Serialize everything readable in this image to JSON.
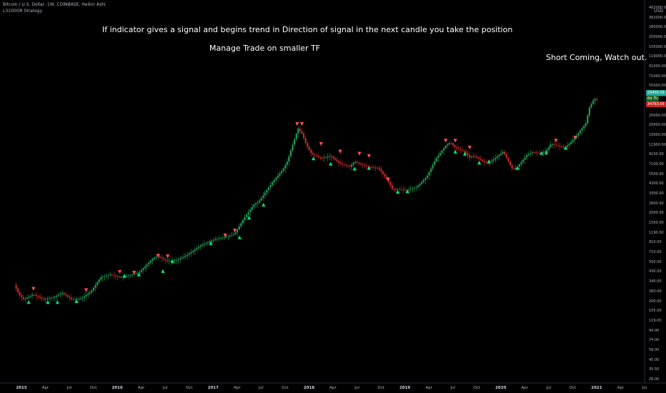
{
  "header": {
    "symbol_line": "Bitcoin / U.S. Dollar, 1W, COINBASE, Heikin Ashi",
    "indicator_line": "L3100OR Strategy"
  },
  "annotations": {
    "line1": "If indicator gives a signal and begins trend in Direction of signal in the next candle you take the position",
    "line2": "Manage Trade on smaller TF",
    "line3": "Short Coming, Watch out."
  },
  "price_scale": {
    "currency": "USD",
    "tags": [
      {
        "value": "29456.09",
        "color": "#26a69a"
      },
      {
        "value": "6d 7h",
        "color": "#1b5e20"
      },
      {
        "value": "34763.54",
        "color": "#c62828"
      }
    ]
  },
  "colors": {
    "up": "#26a65b",
    "down": "#d32f2f",
    "buy_signal": "#00e676",
    "sell_signal": "#ff5252"
  },
  "chart_data": {
    "type": "candlestick",
    "scale": "log",
    "ylim": [
      28,
      402000
    ],
    "y_ticks": [
      "402000.00",
      "362000.00",
      "280000.00",
      "200000.00",
      "155000.00",
      "119000.00",
      "91000.00",
      "71000.00",
      "55000.00",
      "42000.00",
      "32000.00",
      "25000.00",
      "20000.00",
      "15000.00",
      "11900.00",
      "9100.00",
      "7100.00",
      "5500.00",
      "4300.00",
      "3300.00",
      "2600.00",
      "2000.00",
      "1550.00",
      "1190.00",
      "910.00",
      "710.00",
      "550.00",
      "430.00",
      "340.00",
      "260.00",
      "200.00",
      "155.00",
      "119.00",
      "94.00",
      "74.00",
      "58.00",
      "45.00",
      "35.50",
      "28.00"
    ],
    "x_ticks": [
      {
        "label": "2015",
        "year": true
      },
      {
        "label": "Apr",
        "year": false
      },
      {
        "label": "Jul",
        "year": false
      },
      {
        "label": "Oct",
        "year": false
      },
      {
        "label": "2016",
        "year": true
      },
      {
        "label": "Apr",
        "year": false
      },
      {
        "label": "Jul",
        "year": false
      },
      {
        "label": "Oct",
        "year": false
      },
      {
        "label": "2017",
        "year": true
      },
      {
        "label": "Apr",
        "year": false
      },
      {
        "label": "Jul",
        "year": false
      },
      {
        "label": "Oct",
        "year": false
      },
      {
        "label": "2018",
        "year": true
      },
      {
        "label": "Apr",
        "year": false
      },
      {
        "label": "Jul",
        "year": false
      },
      {
        "label": "Oct",
        "year": false
      },
      {
        "label": "2019",
        "year": true
      },
      {
        "label": "Apr",
        "year": false
      },
      {
        "label": "Jul",
        "year": false
      },
      {
        "label": "Oct",
        "year": false
      },
      {
        "label": "2020",
        "year": true
      },
      {
        "label": "Apr",
        "year": false
      },
      {
        "label": "Jul",
        "year": false
      },
      {
        "label": "Oct",
        "year": false
      },
      {
        "label": "2021",
        "year": true
      },
      {
        "label": "Apr",
        "year": false
      },
      {
        "label": "Jul",
        "year": false
      }
    ],
    "series": [
      {
        "kind": "price_path",
        "points": [
          [
            2015.0,
            330
          ],
          [
            2015.05,
            260
          ],
          [
            2015.1,
            230
          ],
          [
            2015.2,
            260
          ],
          [
            2015.3,
            230
          ],
          [
            2015.4,
            240
          ],
          [
            2015.5,
            270
          ],
          [
            2015.6,
            230
          ],
          [
            2015.7,
            235
          ],
          [
            2015.8,
            280
          ],
          [
            2015.9,
            400
          ],
          [
            2016.0,
            430
          ],
          [
            2016.1,
            400
          ],
          [
            2016.2,
            420
          ],
          [
            2016.3,
            450
          ],
          [
            2016.45,
            650
          ],
          [
            2016.5,
            680
          ],
          [
            2016.6,
            600
          ],
          [
            2016.7,
            620
          ],
          [
            2016.8,
            700
          ],
          [
            2016.95,
            900
          ],
          [
            2017.0,
            950
          ],
          [
            2017.1,
            1050
          ],
          [
            2017.2,
            1100
          ],
          [
            2017.3,
            1200
          ],
          [
            2017.4,
            1800
          ],
          [
            2017.5,
            2500
          ],
          [
            2017.55,
            2700
          ],
          [
            2017.6,
            3200
          ],
          [
            2017.7,
            4500
          ],
          [
            2017.8,
            6000
          ],
          [
            2017.85,
            7500
          ],
          [
            2017.9,
            11000
          ],
          [
            2017.96,
            17000
          ],
          [
            2018.0,
            15000
          ],
          [
            2018.05,
            11000
          ],
          [
            2018.1,
            9000
          ],
          [
            2018.2,
            8000
          ],
          [
            2018.3,
            8500
          ],
          [
            2018.4,
            7000
          ],
          [
            2018.5,
            6500
          ],
          [
            2018.55,
            7400
          ],
          [
            2018.6,
            7000
          ],
          [
            2018.7,
            6400
          ],
          [
            2018.8,
            6300
          ],
          [
            2018.9,
            4500
          ],
          [
            2018.95,
            3600
          ],
          [
            2019.0,
            3700
          ],
          [
            2019.1,
            3600
          ],
          [
            2019.2,
            3900
          ],
          [
            2019.3,
            5000
          ],
          [
            2019.4,
            8000
          ],
          [
            2019.5,
            11000
          ],
          [
            2019.55,
            12000
          ],
          [
            2019.6,
            10500
          ],
          [
            2019.7,
            9500
          ],
          [
            2019.75,
            8200
          ],
          [
            2019.8,
            8500
          ],
          [
            2019.9,
            7300
          ],
          [
            2019.95,
            7200
          ],
          [
            2020.0,
            7800
          ],
          [
            2020.1,
            9500
          ],
          [
            2020.2,
            6000
          ],
          [
            2020.25,
            6500
          ],
          [
            2020.35,
            8800
          ],
          [
            2020.4,
            9300
          ],
          [
            2020.5,
            9200
          ],
          [
            2020.55,
            9700
          ],
          [
            2020.6,
            11500
          ],
          [
            2020.7,
            10800
          ],
          [
            2020.75,
            10700
          ],
          [
            2020.8,
            11800
          ],
          [
            2020.85,
            13500
          ],
          [
            2020.9,
            16000
          ],
          [
            2020.96,
            19000
          ],
          [
            2021.0,
            29000
          ],
          [
            2021.05,
            36000
          ],
          [
            2021.08,
            34763.54
          ]
        ]
      }
    ],
    "buy_signals": [
      [
        2015.15,
        215
      ],
      [
        2015.35,
        215
      ],
      [
        2015.45,
        215
      ],
      [
        2015.65,
        220
      ],
      [
        2016.15,
        415
      ],
      [
        2016.3,
        430
      ],
      [
        2016.55,
        470
      ],
      [
        2016.65,
        600
      ],
      [
        2017.05,
        950
      ],
      [
        2017.35,
        1100
      ],
      [
        2017.45,
        1800
      ],
      [
        2017.6,
        2500
      ],
      [
        2018.12,
        8000
      ],
      [
        2018.3,
        7000
      ],
      [
        2018.55,
        6200
      ],
      [
        2018.7,
        6300
      ],
      [
        2019.0,
        3450
      ],
      [
        2019.1,
        3500
      ],
      [
        2019.6,
        9500
      ],
      [
        2019.7,
        9000
      ],
      [
        2019.85,
        7200
      ],
      [
        2019.95,
        7400
      ],
      [
        2020.25,
        6300
      ],
      [
        2020.5,
        9200
      ],
      [
        2020.55,
        9300
      ],
      [
        2020.75,
        10500
      ]
    ],
    "sell_signals": [
      [
        2015.2,
        300
      ],
      [
        2015.75,
        290
      ],
      [
        2016.1,
        460
      ],
      [
        2016.25,
        450
      ],
      [
        2016.5,
        690
      ],
      [
        2016.6,
        680
      ],
      [
        2017.2,
        1150
      ],
      [
        2017.3,
        1300
      ],
      [
        2017.95,
        19000
      ],
      [
        2018.0,
        19000
      ],
      [
        2018.2,
        11500
      ],
      [
        2018.4,
        9500
      ],
      [
        2018.6,
        9000
      ],
      [
        2018.7,
        8500
      ],
      [
        2018.9,
        4700
      ],
      [
        2019.5,
        12500
      ],
      [
        2019.6,
        12500
      ],
      [
        2019.75,
        10500
      ],
      [
        2020.65,
        12500
      ],
      [
        2020.85,
        13500
      ]
    ],
    "last_price": 34763.54
  }
}
